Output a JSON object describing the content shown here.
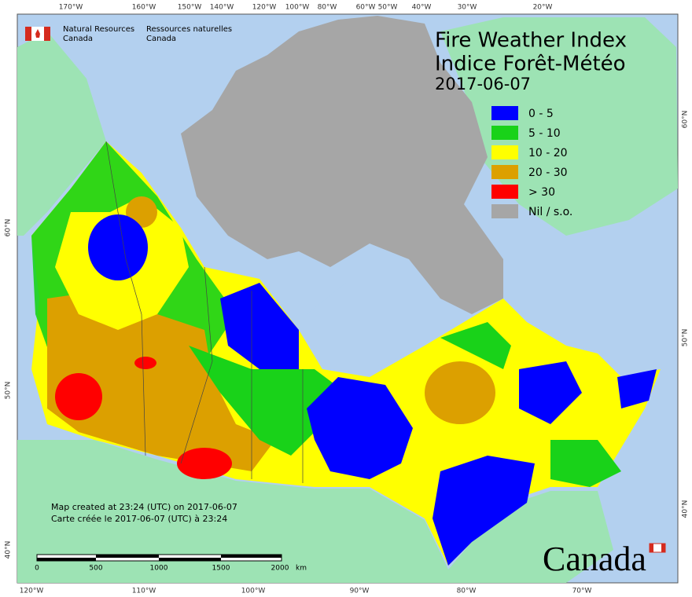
{
  "header": {
    "agency_en": "Natural Resources",
    "agency_en2": "Canada",
    "agency_fr": "Ressources naturelles",
    "agency_fr2": "Canada"
  },
  "title": {
    "line1": "Fire Weather Index",
    "line2": "Indice Forêt-Météo",
    "date": "2017-06-07"
  },
  "legend": [
    {
      "label": "0 - 5",
      "color": "#0000ff"
    },
    {
      "label": "5 - 10",
      "color": "#19d219"
    },
    {
      "label": "10 - 20",
      "color": "#ffff00"
    },
    {
      "label": "20 - 30",
      "color": "#dca000"
    },
    {
      "label": "> 30",
      "color": "#ff0000"
    },
    {
      "label": "Nil / s.o.",
      "color": "#a6a6a6"
    }
  ],
  "graticule": {
    "top": [
      "170°W",
      "160°W",
      "150°W",
      "140°W",
      "120°W",
      "100°W",
      "80°W",
      "60°W",
      "50°W",
      "40°W",
      "30°W",
      "20°W"
    ],
    "bottom": [
      "120°W",
      "110°W",
      "100°W",
      "90°W",
      "80°W",
      "70°W"
    ],
    "left": [
      "60°N",
      "50°N",
      "40°N"
    ],
    "right": [
      "60°N",
      "50°N",
      "40°N"
    ]
  },
  "credits": [
    "Map created at 23:24 (UTC) on 2017-06-07",
    "Carte créée le 2017-06-07 (UTC) à 23:24"
  ],
  "scale_bar": {
    "labels": [
      "0",
      "500",
      "1000",
      "1500",
      "2000"
    ],
    "unit": "km"
  },
  "wordmark": "Canada"
}
